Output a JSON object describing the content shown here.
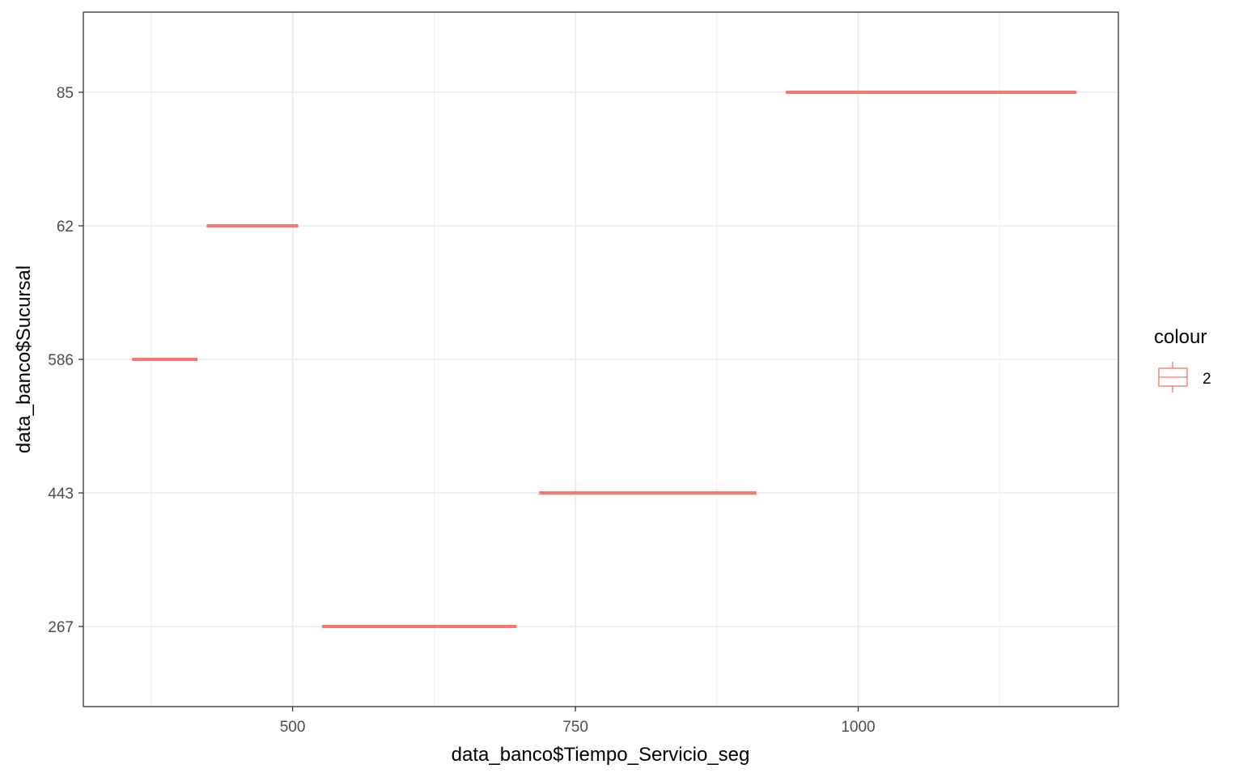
{
  "chart_data": {
    "type": "boxplot",
    "title": "",
    "xlabel": "data_banco$Tiempo_Servicio_seg",
    "ylabel": "data_banco$Sucursal",
    "xlim": [
      315,
      1230
    ],
    "x_ticks": [
      500,
      750,
      1000
    ],
    "x_tick_labels": [
      "500",
      "750",
      "1000"
    ],
    "categories": [
      "267",
      "443",
      "586",
      "62",
      "85"
    ],
    "ranges": [
      {
        "category": "267",
        "min": 526,
        "max": 698
      },
      {
        "category": "443",
        "min": 718,
        "max": 910
      },
      {
        "category": "586",
        "min": 358,
        "max": 416
      },
      {
        "category": "62",
        "min": 424,
        "max": 505
      },
      {
        "category": "85",
        "min": 936,
        "max": 1193
      }
    ],
    "grid": true,
    "legend": {
      "title": "colour",
      "position": "right",
      "items": [
        {
          "label": "2",
          "color": "#F8766D"
        }
      ]
    },
    "series_color": "#F8766D"
  }
}
